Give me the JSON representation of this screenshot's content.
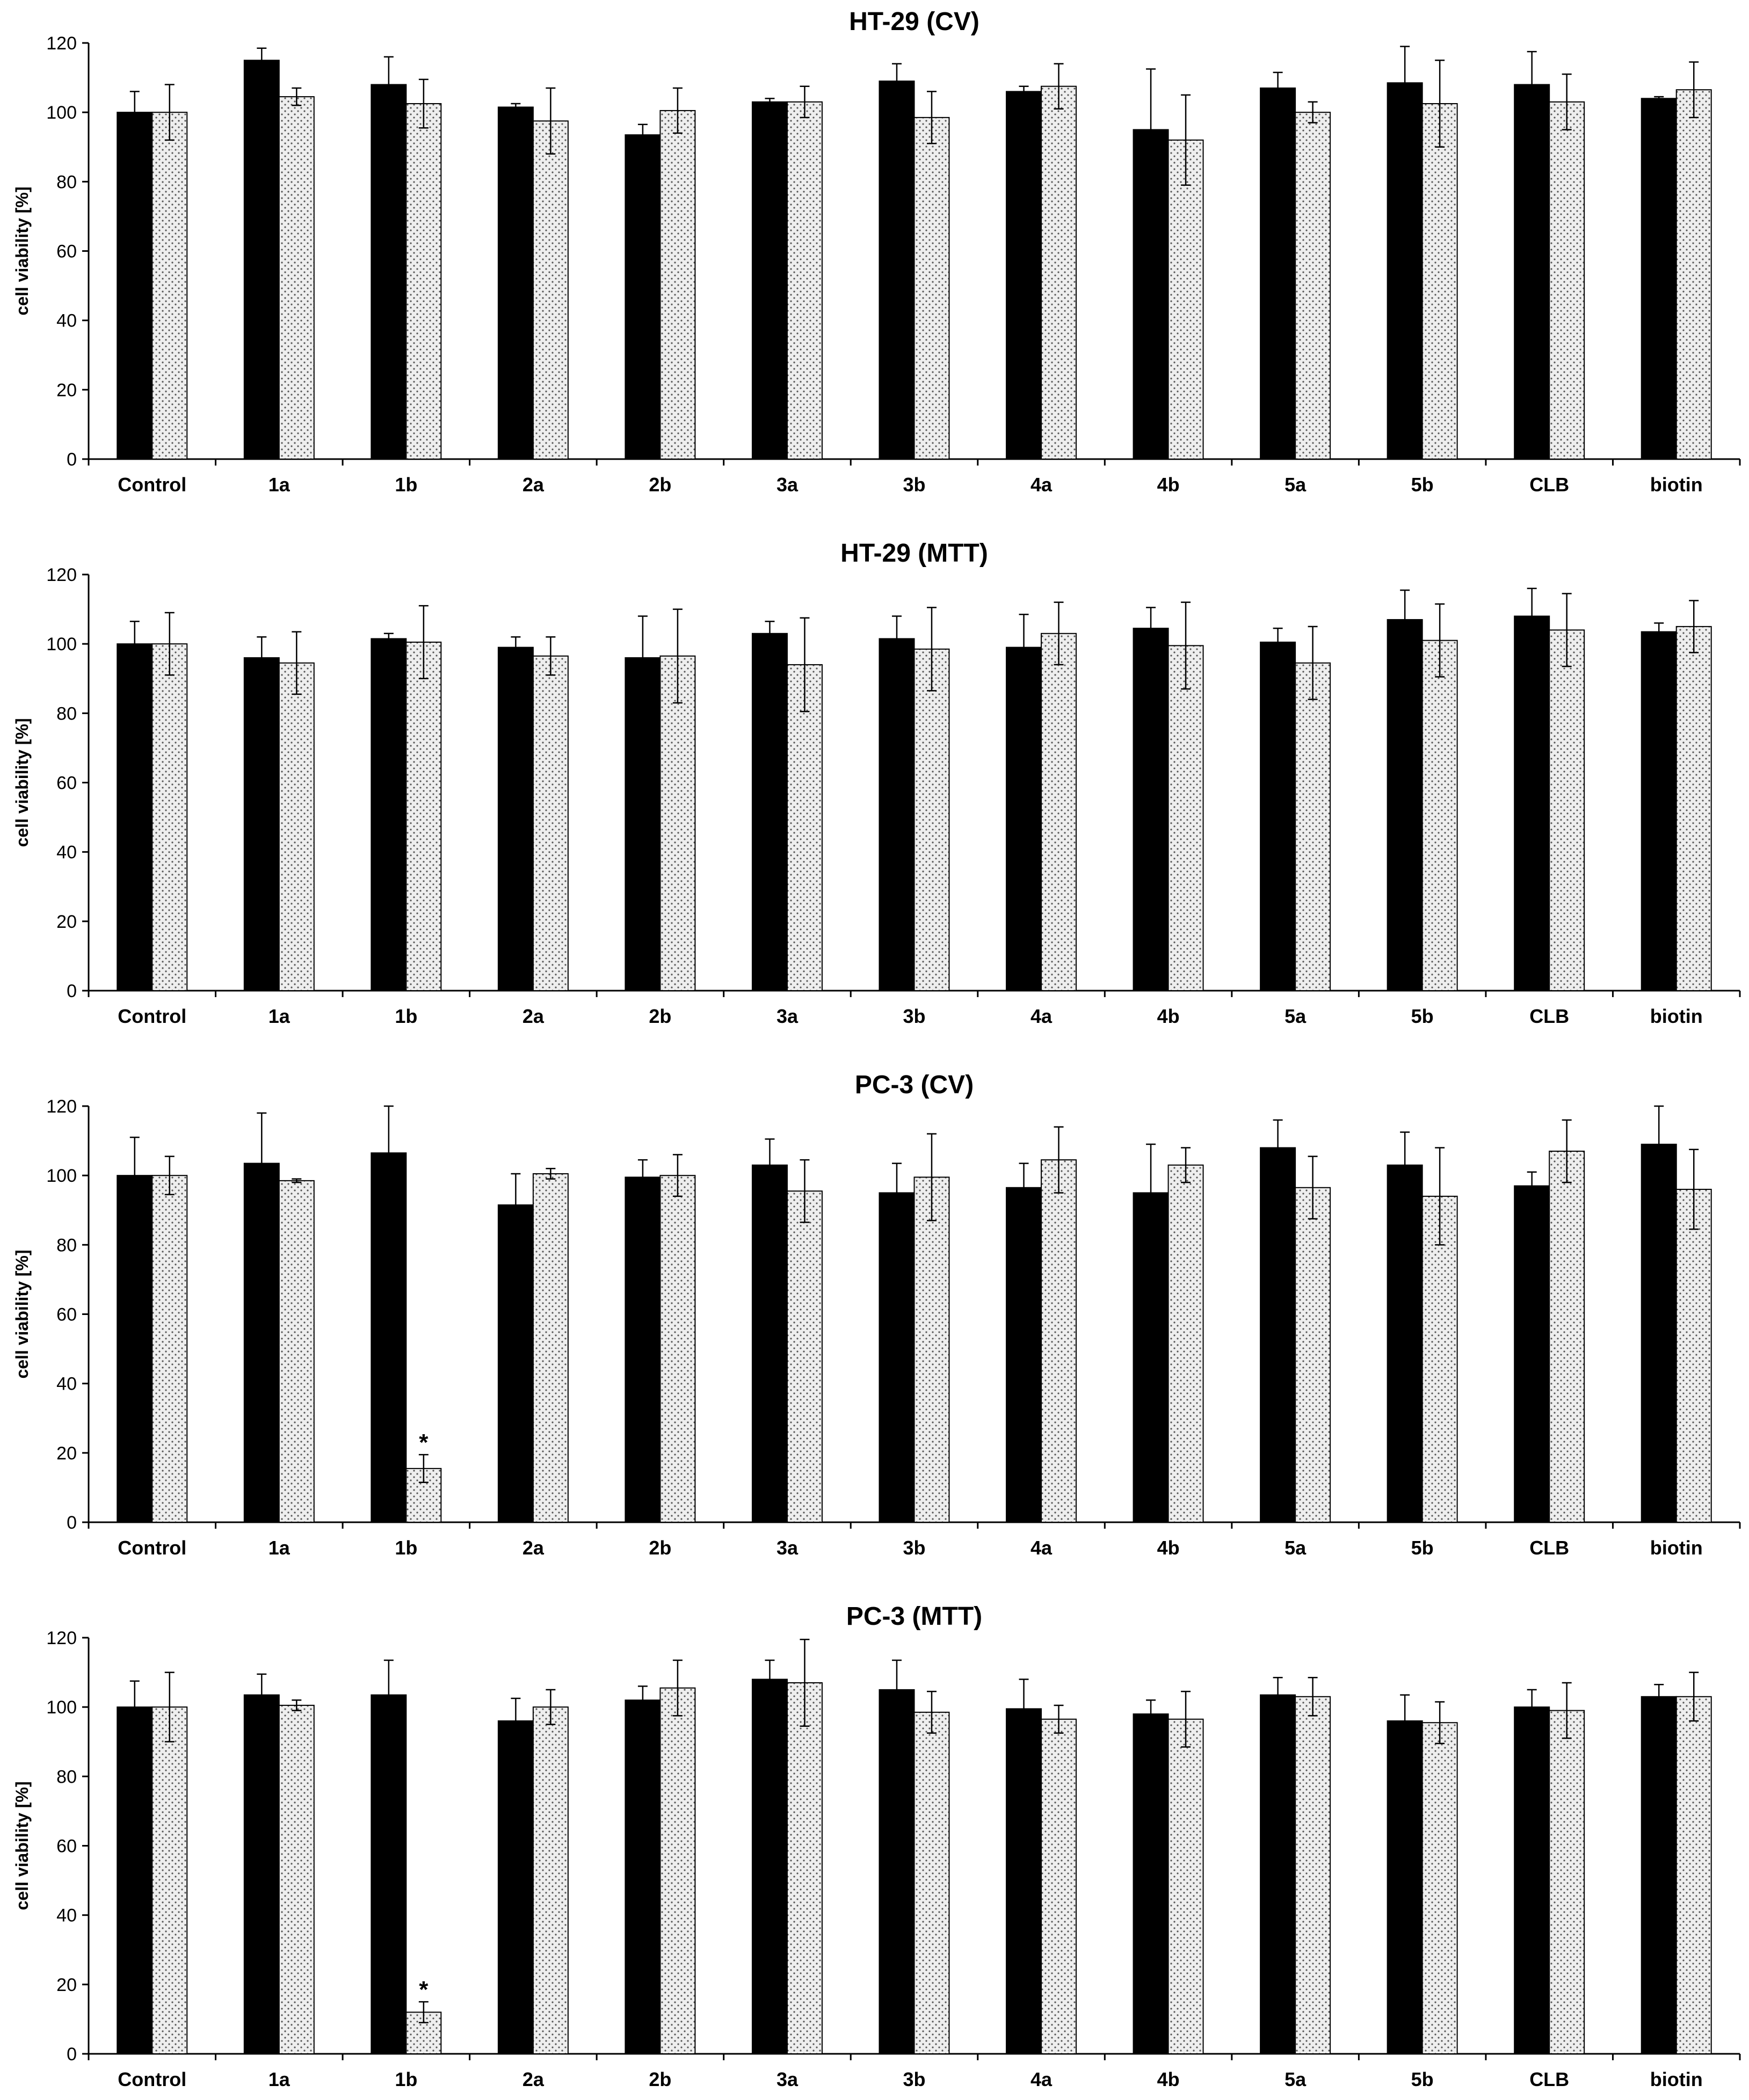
{
  "figure": {
    "colors": {
      "black_bar": "#000000",
      "dotted_bar_bg": "#eeeeee",
      "dotted_bar_dot": "#555555",
      "axis": "#000000"
    }
  },
  "chart_data": [
    {
      "type": "bar",
      "title": "HT-29 (CV)",
      "ylabel": "cell viability [%]",
      "xlabel": "",
      "ylim": [
        0,
        120
      ],
      "yticks": [
        "0",
        "20",
        "40",
        "60",
        "80",
        "100",
        "120"
      ],
      "grid": false,
      "categories": [
        "Control",
        "1a",
        "1b",
        "2a",
        "2b",
        "3a",
        "3b",
        "4a",
        "4b",
        "5a",
        "5b",
        "CLB",
        "biotin"
      ],
      "series": [
        {
          "style": "solid-black",
          "values": [
            100,
            115,
            108,
            101.5,
            93.5,
            103,
            109,
            106,
            95,
            107,
            108.5,
            108,
            104
          ],
          "errors": [
            6,
            3.5,
            8,
            1,
            3,
            1,
            5,
            1.5,
            17.5,
            4.5,
            10.5,
            9.5,
            0.5
          ]
        },
        {
          "style": "dotted-gray",
          "values": [
            100,
            104.5,
            102.5,
            97.5,
            100.5,
            103,
            98.5,
            107.5,
            92,
            100,
            102.5,
            103,
            106.5
          ],
          "errors": [
            8,
            2.5,
            7,
            9.5,
            6.5,
            4.5,
            7.5,
            6.5,
            13,
            3,
            12.5,
            8,
            8
          ]
        }
      ],
      "annotations": []
    },
    {
      "type": "bar",
      "title": "HT-29 (MTT)",
      "ylabel": "cell viability [%]",
      "xlabel": "",
      "ylim": [
        0,
        120
      ],
      "yticks": [
        "0",
        "20",
        "40",
        "60",
        "80",
        "100",
        "120"
      ],
      "grid": false,
      "categories": [
        "Control",
        "1a",
        "1b",
        "2a",
        "2b",
        "3a",
        "3b",
        "4a",
        "4b",
        "5a",
        "5b",
        "CLB",
        "biotin"
      ],
      "series": [
        {
          "style": "solid-black",
          "values": [
            100,
            96,
            101.5,
            99,
            96,
            103,
            101.5,
            99,
            104.5,
            100.5,
            107,
            108,
            103.5
          ],
          "errors": [
            6.5,
            6,
            1.5,
            3,
            12,
            3.5,
            6.5,
            9.5,
            6,
            4,
            8.5,
            8,
            2.5
          ]
        },
        {
          "style": "dotted-gray",
          "values": [
            100,
            94.5,
            100.5,
            96.5,
            96.5,
            94,
            98.5,
            103,
            99.5,
            94.5,
            101,
            104,
            105
          ],
          "errors": [
            9,
            9,
            10.5,
            5.5,
            13.5,
            13.5,
            12,
            9,
            12.5,
            10.5,
            10.5,
            10.5,
            7.5
          ]
        }
      ],
      "annotations": []
    },
    {
      "type": "bar",
      "title": "PC-3 (CV)",
      "ylabel": "cell viability [%]",
      "xlabel": "",
      "ylim": [
        0,
        120
      ],
      "yticks": [
        "0",
        "20",
        "40",
        "60",
        "80",
        "100",
        "120"
      ],
      "grid": false,
      "categories": [
        "Control",
        "1a",
        "1b",
        "2a",
        "2b",
        "3a",
        "3b",
        "4a",
        "4b",
        "5a",
        "5b",
        "CLB",
        "biotin"
      ],
      "series": [
        {
          "style": "solid-black",
          "values": [
            100,
            103.5,
            106.5,
            91.5,
            99.5,
            103,
            95,
            96.5,
            95,
            108,
            103,
            97,
            109
          ],
          "errors": [
            11,
            14.5,
            13.5,
            9,
            5,
            7.5,
            8.5,
            7,
            14,
            8,
            9.5,
            4,
            11
          ]
        },
        {
          "style": "dotted-gray",
          "values": [
            100,
            98.5,
            15.5,
            100.5,
            100,
            95.5,
            99.5,
            104.5,
            103,
            96.5,
            94,
            107,
            96
          ],
          "errors": [
            5.5,
            0.5,
            4,
            1.5,
            6,
            9,
            12.5,
            9.5,
            5,
            9,
            14,
            9,
            11.5
          ]
        }
      ],
      "annotations": [
        {
          "text": "*",
          "category": "1b",
          "series": 1
        }
      ]
    },
    {
      "type": "bar",
      "title": "PC-3 (MTT)",
      "ylabel": "cell viability [%]",
      "xlabel": "",
      "ylim": [
        0,
        120
      ],
      "yticks": [
        "0",
        "20",
        "40",
        "60",
        "80",
        "100",
        "120"
      ],
      "grid": false,
      "categories": [
        "Control",
        "1a",
        "1b",
        "2a",
        "2b",
        "3a",
        "3b",
        "4a",
        "4b",
        "5a",
        "5b",
        "CLB",
        "biotin"
      ],
      "series": [
        {
          "style": "solid-black",
          "values": [
            100,
            103.5,
            103.5,
            96,
            102,
            108,
            105,
            99.5,
            98,
            103.5,
            96,
            100,
            103
          ],
          "errors": [
            7.5,
            6,
            10,
            6.5,
            4,
            5.5,
            8.5,
            8.5,
            4,
            5,
            7.5,
            5,
            3.5
          ]
        },
        {
          "style": "dotted-gray",
          "values": [
            100,
            100.5,
            12,
            100,
            105.5,
            107,
            98.5,
            96.5,
            96.5,
            103,
            95.5,
            99,
            103
          ],
          "errors": [
            10,
            1.5,
            3,
            5,
            8,
            12.5,
            6,
            4,
            8,
            5.5,
            6,
            8,
            7
          ]
        }
      ],
      "annotations": [
        {
          "text": "*",
          "category": "1b",
          "series": 1
        }
      ]
    }
  ]
}
